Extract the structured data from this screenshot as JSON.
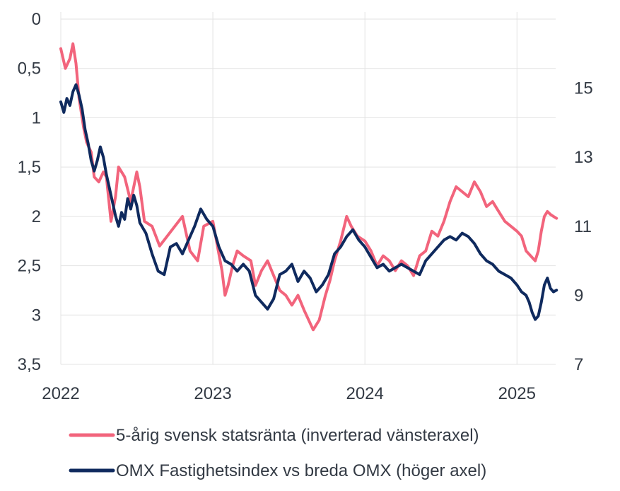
{
  "chart_data": {
    "type": "line",
    "title": "",
    "xlabel": "",
    "x_ticks": [
      "2022",
      "2023",
      "2024",
      "2025"
    ],
    "x_range": [
      2022.0,
      2025.26
    ],
    "y_left": {
      "inverted": true,
      "range": [
        0,
        3.5
      ],
      "ticks": [
        0,
        0.5,
        1,
        1.5,
        2,
        2.5,
        3,
        3.5
      ],
      "tick_labels": [
        "0",
        "0,5",
        "1",
        "1,5",
        "2",
        "2,5",
        "3",
        "3,5"
      ]
    },
    "y_right": {
      "range": [
        7,
        17
      ],
      "ticks": [
        7,
        9,
        11,
        13,
        15
      ],
      "tick_labels": [
        "7",
        "9",
        "11",
        "13",
        "15"
      ]
    },
    "grid": true,
    "legend_position": "bottom",
    "series": [
      {
        "name": "5-årig svensk statsränta (inverterad vänsteraxel)",
        "axis": "left",
        "color": "#f2647c",
        "points": [
          [
            2022.0,
            0.3
          ],
          [
            2022.03,
            0.5
          ],
          [
            2022.06,
            0.4
          ],
          [
            2022.08,
            0.25
          ],
          [
            2022.1,
            0.45
          ],
          [
            2022.12,
            0.8
          ],
          [
            2022.15,
            1.1
          ],
          [
            2022.17,
            1.25
          ],
          [
            2022.2,
            1.35
          ],
          [
            2022.22,
            1.6
          ],
          [
            2022.25,
            1.65
          ],
          [
            2022.28,
            1.55
          ],
          [
            2022.3,
            1.6
          ],
          [
            2022.33,
            2.05
          ],
          [
            2022.36,
            1.8
          ],
          [
            2022.38,
            1.5
          ],
          [
            2022.42,
            1.6
          ],
          [
            2022.46,
            1.85
          ],
          [
            2022.5,
            1.55
          ],
          [
            2022.52,
            1.7
          ],
          [
            2022.55,
            2.05
          ],
          [
            2022.6,
            2.1
          ],
          [
            2022.65,
            2.3
          ],
          [
            2022.7,
            2.2
          ],
          [
            2022.75,
            2.1
          ],
          [
            2022.8,
            2.0
          ],
          [
            2022.85,
            2.35
          ],
          [
            2022.9,
            2.45
          ],
          [
            2022.94,
            2.1
          ],
          [
            2023.0,
            2.05
          ],
          [
            2023.03,
            2.3
          ],
          [
            2023.06,
            2.55
          ],
          [
            2023.08,
            2.8
          ],
          [
            2023.1,
            2.7
          ],
          [
            2023.13,
            2.5
          ],
          [
            2023.16,
            2.35
          ],
          [
            2023.2,
            2.4
          ],
          [
            2023.25,
            2.45
          ],
          [
            2023.28,
            2.7
          ],
          [
            2023.32,
            2.55
          ],
          [
            2023.36,
            2.45
          ],
          [
            2023.4,
            2.6
          ],
          [
            2023.44,
            2.75
          ],
          [
            2023.48,
            2.8
          ],
          [
            2023.52,
            2.9
          ],
          [
            2023.56,
            2.8
          ],
          [
            2023.6,
            2.95
          ],
          [
            2023.63,
            3.05
          ],
          [
            2023.66,
            3.15
          ],
          [
            2023.7,
            3.05
          ],
          [
            2023.74,
            2.8
          ],
          [
            2023.77,
            2.65
          ],
          [
            2023.8,
            2.45
          ],
          [
            2023.84,
            2.25
          ],
          [
            2023.88,
            2.0
          ],
          [
            2023.91,
            2.1
          ],
          [
            2023.95,
            2.2
          ],
          [
            2024.0,
            2.25
          ],
          [
            2024.04,
            2.35
          ],
          [
            2024.08,
            2.5
          ],
          [
            2024.12,
            2.4
          ],
          [
            2024.16,
            2.45
          ],
          [
            2024.2,
            2.55
          ],
          [
            2024.24,
            2.45
          ],
          [
            2024.28,
            2.5
          ],
          [
            2024.32,
            2.6
          ],
          [
            2024.36,
            2.4
          ],
          [
            2024.4,
            2.35
          ],
          [
            2024.44,
            2.15
          ],
          [
            2024.48,
            2.2
          ],
          [
            2024.52,
            2.05
          ],
          [
            2024.56,
            1.85
          ],
          [
            2024.6,
            1.7
          ],
          [
            2024.64,
            1.75
          ],
          [
            2024.68,
            1.8
          ],
          [
            2024.72,
            1.65
          ],
          [
            2024.76,
            1.75
          ],
          [
            2024.8,
            1.9
          ],
          [
            2024.84,
            1.85
          ],
          [
            2024.88,
            1.95
          ],
          [
            2024.92,
            2.05
          ],
          [
            2024.96,
            2.1
          ],
          [
            2025.0,
            2.15
          ],
          [
            2025.03,
            2.2
          ],
          [
            2025.06,
            2.35
          ],
          [
            2025.09,
            2.4
          ],
          [
            2025.12,
            2.45
          ],
          [
            2025.14,
            2.35
          ],
          [
            2025.16,
            2.15
          ],
          [
            2025.18,
            2.0
          ],
          [
            2025.2,
            1.95
          ],
          [
            2025.22,
            1.98
          ],
          [
            2025.24,
            2.0
          ],
          [
            2025.26,
            2.02
          ]
        ]
      },
      {
        "name": "OMX Fastighetsindex vs breda OMX (höger axel)",
        "axis": "right",
        "color": "#0f2a5e",
        "points": [
          [
            2022.0,
            14.6
          ],
          [
            2022.02,
            14.3
          ],
          [
            2022.04,
            14.7
          ],
          [
            2022.06,
            14.5
          ],
          [
            2022.08,
            14.9
          ],
          [
            2022.1,
            15.1
          ],
          [
            2022.12,
            14.8
          ],
          [
            2022.14,
            14.4
          ],
          [
            2022.16,
            13.8
          ],
          [
            2022.18,
            13.4
          ],
          [
            2022.2,
            12.9
          ],
          [
            2022.22,
            12.6
          ],
          [
            2022.24,
            12.9
          ],
          [
            2022.26,
            13.3
          ],
          [
            2022.28,
            13.0
          ],
          [
            2022.3,
            12.5
          ],
          [
            2022.32,
            12.1
          ],
          [
            2022.34,
            11.7
          ],
          [
            2022.36,
            11.3
          ],
          [
            2022.38,
            11.0
          ],
          [
            2022.4,
            11.4
          ],
          [
            2022.42,
            11.2
          ],
          [
            2022.44,
            11.8
          ],
          [
            2022.46,
            11.5
          ],
          [
            2022.48,
            11.9
          ],
          [
            2022.5,
            11.6
          ],
          [
            2022.52,
            11.1
          ],
          [
            2022.56,
            10.8
          ],
          [
            2022.6,
            10.2
          ],
          [
            2022.64,
            9.7
          ],
          [
            2022.68,
            9.6
          ],
          [
            2022.72,
            10.4
          ],
          [
            2022.76,
            10.5
          ],
          [
            2022.8,
            10.2
          ],
          [
            2022.84,
            10.6
          ],
          [
            2022.88,
            11.0
          ],
          [
            2022.92,
            11.5
          ],
          [
            2022.96,
            11.2
          ],
          [
            2023.0,
            11.0
          ],
          [
            2023.04,
            10.4
          ],
          [
            2023.08,
            10.0
          ],
          [
            2023.12,
            9.9
          ],
          [
            2023.16,
            9.7
          ],
          [
            2023.2,
            9.9
          ],
          [
            2023.24,
            9.7
          ],
          [
            2023.28,
            9.0
          ],
          [
            2023.32,
            8.8
          ],
          [
            2023.36,
            8.6
          ],
          [
            2023.4,
            8.9
          ],
          [
            2023.44,
            9.6
          ],
          [
            2023.48,
            9.7
          ],
          [
            2023.52,
            9.9
          ],
          [
            2023.56,
            9.4
          ],
          [
            2023.6,
            9.7
          ],
          [
            2023.64,
            9.5
          ],
          [
            2023.68,
            9.1
          ],
          [
            2023.72,
            9.3
          ],
          [
            2023.76,
            9.6
          ],
          [
            2023.8,
            10.2
          ],
          [
            2023.84,
            10.4
          ],
          [
            2023.88,
            10.7
          ],
          [
            2023.92,
            10.9
          ],
          [
            2023.96,
            10.6
          ],
          [
            2024.0,
            10.4
          ],
          [
            2024.04,
            10.1
          ],
          [
            2024.08,
            9.8
          ],
          [
            2024.12,
            9.9
          ],
          [
            2024.16,
            9.7
          ],
          [
            2024.2,
            9.8
          ],
          [
            2024.24,
            9.9
          ],
          [
            2024.28,
            9.8
          ],
          [
            2024.32,
            9.7
          ],
          [
            2024.36,
            9.6
          ],
          [
            2024.4,
            10.0
          ],
          [
            2024.44,
            10.2
          ],
          [
            2024.48,
            10.4
          ],
          [
            2024.52,
            10.6
          ],
          [
            2024.56,
            10.7
          ],
          [
            2024.6,
            10.6
          ],
          [
            2024.64,
            10.8
          ],
          [
            2024.68,
            10.7
          ],
          [
            2024.72,
            10.5
          ],
          [
            2024.76,
            10.2
          ],
          [
            2024.8,
            10.0
          ],
          [
            2024.84,
            9.9
          ],
          [
            2024.88,
            9.7
          ],
          [
            2024.92,
            9.6
          ],
          [
            2024.96,
            9.5
          ],
          [
            2025.0,
            9.3
          ],
          [
            2025.03,
            9.1
          ],
          [
            2025.06,
            9.0
          ],
          [
            2025.08,
            8.8
          ],
          [
            2025.1,
            8.5
          ],
          [
            2025.12,
            8.3
          ],
          [
            2025.14,
            8.4
          ],
          [
            2025.16,
            8.8
          ],
          [
            2025.18,
            9.3
          ],
          [
            2025.2,
            9.5
          ],
          [
            2025.22,
            9.2
          ],
          [
            2025.24,
            9.1
          ],
          [
            2025.26,
            9.15
          ]
        ]
      }
    ]
  }
}
